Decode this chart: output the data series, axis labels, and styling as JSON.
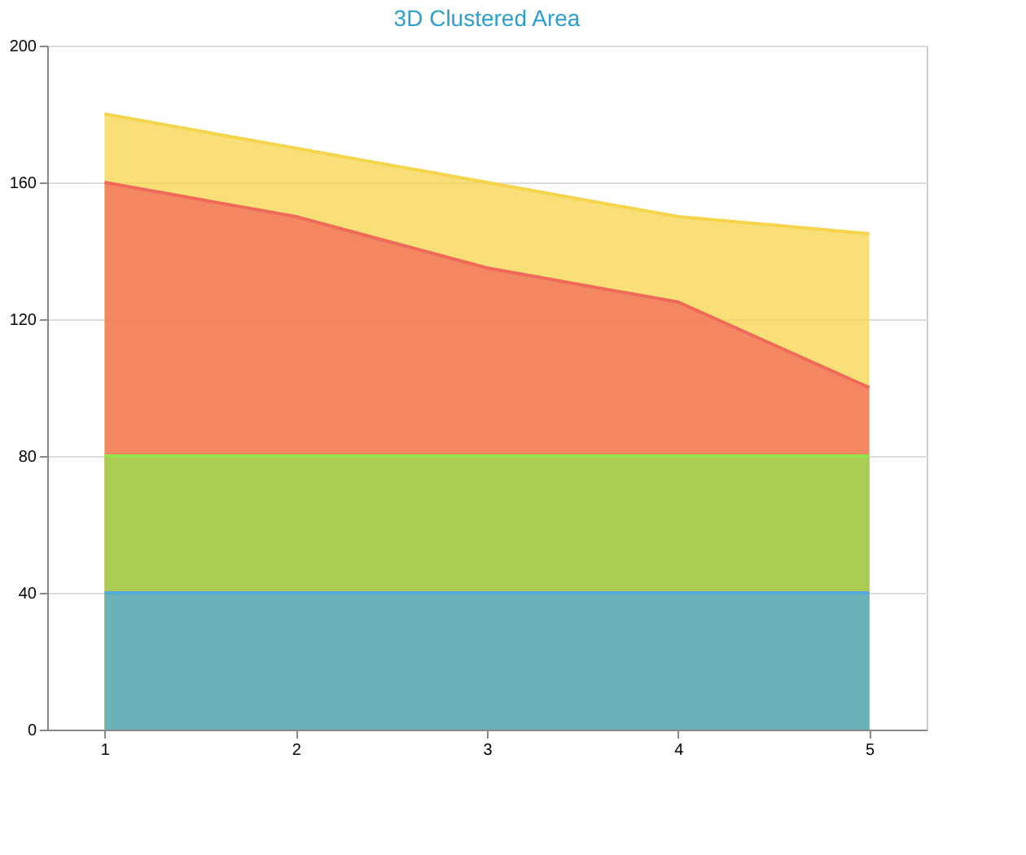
{
  "chart_data": {
    "type": "area",
    "title": "3D Clustered Area",
    "categories": [
      "1",
      "2",
      "3",
      "4",
      "5"
    ],
    "series": [
      {
        "color": "#56aadb",
        "values": [
          40,
          40,
          40,
          40,
          40
        ]
      },
      {
        "color": "#92e34d",
        "values": [
          80,
          80,
          80,
          80,
          80
        ]
      },
      {
        "color": "#f06a5a",
        "values": [
          160,
          150,
          135,
          125,
          100
        ]
      },
      {
        "color": "#f6d44b",
        "values": [
          180,
          170,
          160,
          150,
          145
        ]
      }
    ],
    "ylim": [
      0,
      200
    ],
    "yticks": [
      0,
      40,
      80,
      120,
      160,
      200
    ],
    "grid": "y"
  }
}
